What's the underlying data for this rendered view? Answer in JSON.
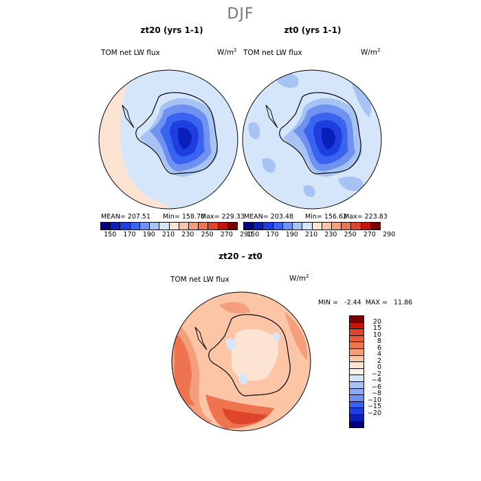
{
  "page": {
    "title": "DJF"
  },
  "panels": [
    {
      "title": "zt20 (yrs 1-1)",
      "variable": "TOM net LW flux",
      "units": "W/m",
      "units_exp": "2",
      "stats": {
        "mean": "MEAN= 207.51",
        "min": "Min= 158.70",
        "max": "Max= 229.33"
      }
    },
    {
      "title": "zt0 (yrs 1-1)",
      "variable": "TOM net LW flux",
      "units": "W/m",
      "units_exp": "2",
      "stats": {
        "mean": "MEAN= 203.48",
        "min": "Min= 156.62",
        "max": "Max= 223.83"
      }
    },
    {
      "title": "zt20 - zt0",
      "variable": "TOM net LW flux",
      "units": "W/m",
      "units_exp": "2",
      "stats": {
        "minmax": "MIN =   -2.44  MAX =   11.86"
      }
    }
  ],
  "colors": {
    "abs_scale": [
      "#000080",
      "#0a1fb8",
      "#1e3ee0",
      "#3a63ef",
      "#6f92f1",
      "#a7c3f4",
      "#d6e6fa",
      "#fde4d2",
      "#fbc5a6",
      "#f59e7b",
      "#ee744f",
      "#e0442b",
      "#c2150e",
      "#7a0000"
    ],
    "diff_scale": [
      "#000080",
      "#0a1fb8",
      "#1e3ee0",
      "#3a63ef",
      "#6f92f1",
      "#8aaaf3",
      "#a7c3f4",
      "#d6e6fa",
      "#fdf1e4",
      "#fde4d2",
      "#fbc5a6",
      "#f59e7b",
      "#ee744f",
      "#e85a3a",
      "#e0442b",
      "#c2150e",
      "#7a0000"
    ]
  },
  "chart_data": [
    {
      "type": "heatmap",
      "title": "zt20 (yrs 1-1)",
      "label": "TOM net LW flux",
      "units": "W/m^2",
      "projection": "south polar stereographic",
      "colorbar": {
        "orientation": "horizontal",
        "levels": [
          150,
          160,
          170,
          180,
          190,
          200,
          210,
          220,
          230,
          240,
          250,
          260,
          270,
          280,
          290
        ],
        "tick_labels": [
          "150",
          "170",
          "190",
          "210",
          "230",
          "250",
          "270",
          "290"
        ]
      },
      "mean": 207.51,
      "min": 158.7,
      "max": 229.33
    },
    {
      "type": "heatmap",
      "title": "zt0 (yrs 1-1)",
      "label": "TOM net LW flux",
      "units": "W/m^2",
      "projection": "south polar stereographic",
      "colorbar": {
        "orientation": "horizontal",
        "levels": [
          150,
          160,
          170,
          180,
          190,
          200,
          210,
          220,
          230,
          240,
          250,
          260,
          270,
          280,
          290
        ],
        "tick_labels": [
          "150",
          "170",
          "190",
          "210",
          "230",
          "250",
          "270",
          "290"
        ]
      },
      "mean": 203.48,
      "min": 156.62,
      "max": 223.83
    },
    {
      "type": "heatmap",
      "title": "zt20 - zt0",
      "label": "TOM net LW flux",
      "units": "W/m^2",
      "projection": "south polar stereographic",
      "colorbar": {
        "orientation": "vertical",
        "tick_labels": [
          "20",
          "15",
          "10",
          "8",
          "6",
          "4",
          "2",
          "0",
          "−2",
          "−4",
          "−6",
          "−8",
          "−10",
          "−15",
          "−20"
        ]
      },
      "min": -2.44,
      "max": 11.86
    }
  ]
}
